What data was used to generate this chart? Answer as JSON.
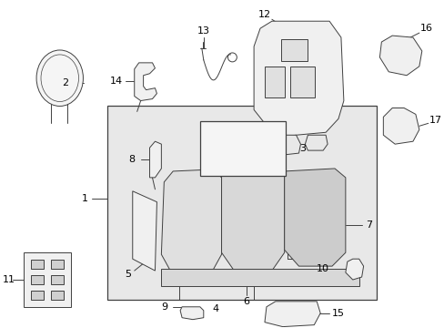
{
  "bg_color": "#ffffff",
  "panel_fill": "#ebebeb",
  "lc": "#404040",
  "lw": 0.7,
  "fig_w": 4.89,
  "fig_h": 3.6,
  "dpi": 100
}
